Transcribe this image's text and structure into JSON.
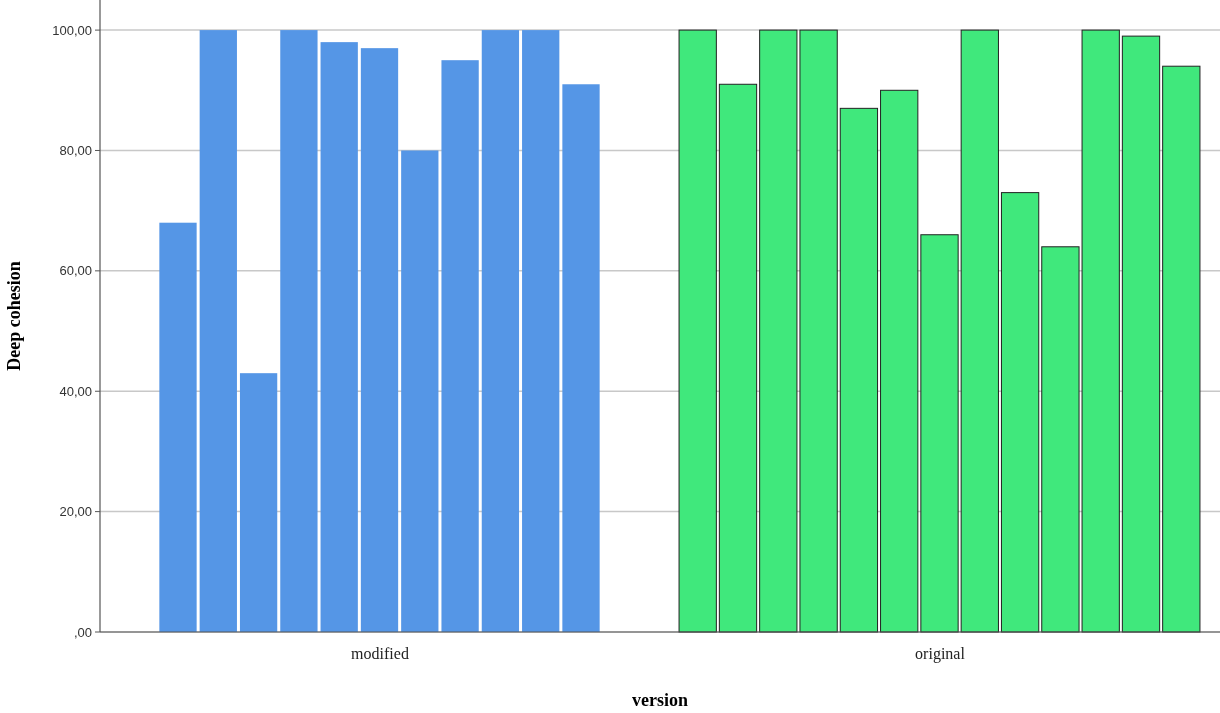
{
  "chart_data": {
    "type": "bar",
    "xlabel": "version",
    "ylabel": "Deep cohesion",
    "categories": [
      "modified",
      "original"
    ],
    "ylim": [
      0,
      105
    ],
    "yticks": [
      {
        "value": 0,
        "label": ",00"
      },
      {
        "value": 20,
        "label": "20,00"
      },
      {
        "value": 40,
        "label": "40,00"
      },
      {
        "value": 60,
        "label": "60,00"
      },
      {
        "value": 80,
        "label": "80,00"
      },
      {
        "value": 100,
        "label": "100,00"
      }
    ],
    "grid": "y",
    "series": [
      {
        "values": [
          68,
          100
        ],
        "colors": [
          "#5596e6",
          "#40e87c"
        ]
      },
      {
        "values": [
          100,
          91
        ],
        "colors": [
          "#5596e6",
          "#40e87c"
        ]
      },
      {
        "values": [
          43,
          100
        ],
        "colors": [
          "#5596e6",
          "#40e87c"
        ]
      },
      {
        "values": [
          100,
          100
        ],
        "colors": [
          "#5596e6",
          "#40e87c"
        ]
      },
      {
        "values": [
          98,
          87
        ],
        "colors": [
          "#5596e6",
          "#40e87c"
        ]
      },
      {
        "values": [
          97,
          90
        ],
        "colors": [
          "#5596e6",
          "#40e87c"
        ]
      },
      {
        "values": [
          80,
          66
        ],
        "colors": [
          "#5596e6",
          "#40e87c"
        ]
      },
      {
        "values": [
          95,
          100
        ],
        "colors": [
          "#5596e6",
          "#40e87c"
        ]
      },
      {
        "values": [
          100,
          73
        ],
        "colors": [
          "#5596e6",
          "#40e87c"
        ]
      },
      {
        "values": [
          100,
          64
        ],
        "colors": [
          "#5596e6",
          "#40e87c"
        ]
      },
      {
        "values": [
          91,
          100
        ],
        "colors": [
          "#5596e6",
          "#40e87c"
        ]
      },
      {
        "values": [
          null,
          99
        ],
        "color": "#40e87c"
      },
      {
        "values": [
          null,
          94
        ],
        "color": "#40e87c"
      }
    ]
  }
}
